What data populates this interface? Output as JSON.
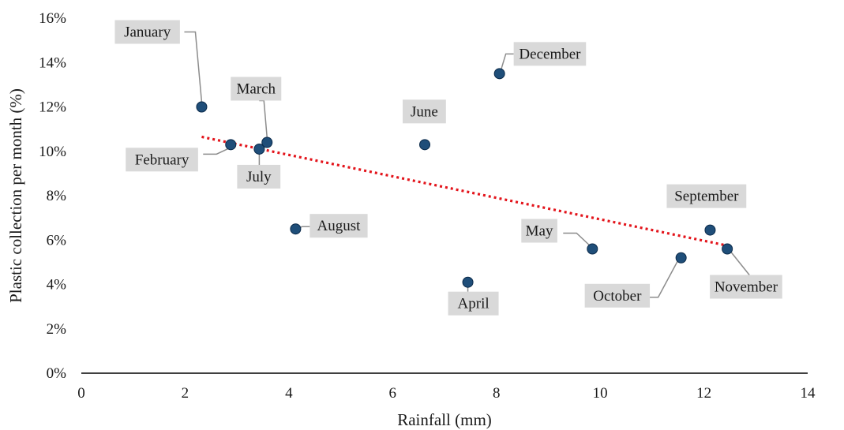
{
  "chart_data": {
    "type": "scatter",
    "title": "",
    "xlabel": "Rainfall (mm)",
    "ylabel": "Plastic collection per month (%)",
    "xlim": [
      0,
      14
    ],
    "ylim": [
      0,
      16
    ],
    "xticks": [
      "0",
      "2",
      "4",
      "6",
      "8",
      "10",
      "12",
      "14"
    ],
    "yticks": [
      "0%",
      "2%",
      "4%",
      "6%",
      "8%",
      "10%",
      "12%",
      "14%",
      "16%"
    ],
    "grid": false,
    "legend": "none",
    "colors": {
      "point": "#1f4e79",
      "trendline": "#e3141b",
      "label_box": "#d9d9d9"
    },
    "series": [
      {
        "points": [
          {
            "month": "January",
            "x": 2.32,
            "y": 12.0
          },
          {
            "month": "February",
            "x": 2.88,
            "y": 10.3
          },
          {
            "month": "March",
            "x": 3.58,
            "y": 10.4
          },
          {
            "month": "April",
            "x": 7.45,
            "y": 4.1
          },
          {
            "month": "May",
            "x": 9.85,
            "y": 5.6
          },
          {
            "month": "June",
            "x": 6.62,
            "y": 10.3
          },
          {
            "month": "July",
            "x": 3.43,
            "y": 10.1
          },
          {
            "month": "August",
            "x": 4.13,
            "y": 6.5
          },
          {
            "month": "September",
            "x": 12.12,
            "y": 6.45
          },
          {
            "month": "October",
            "x": 11.56,
            "y": 5.2
          },
          {
            "month": "November",
            "x": 12.45,
            "y": 5.6
          },
          {
            "month": "December",
            "x": 8.06,
            "y": 13.5
          }
        ]
      }
    ],
    "trendline": {
      "type": "linear",
      "x": [
        2.32,
        12.45
      ],
      "y": [
        10.65,
        5.75
      ]
    }
  }
}
